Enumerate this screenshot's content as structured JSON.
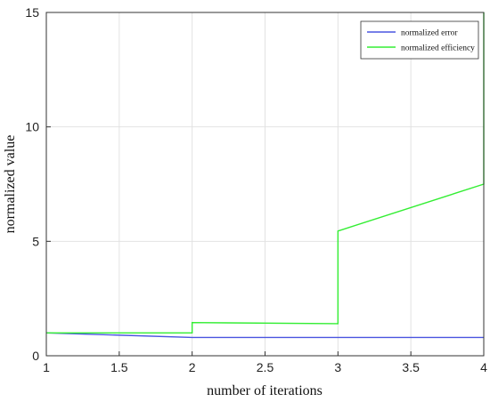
{
  "chart_data": {
    "type": "line",
    "title": "",
    "xlabel": "number of iterations",
    "ylabel": "normalized value",
    "xlim": [
      1,
      4
    ],
    "ylim": [
      0,
      15
    ],
    "xticks": [
      "1",
      "1.5",
      "2",
      "2.5",
      "3",
      "3.5",
      "4"
    ],
    "yticks": [
      "0",
      "5",
      "10",
      "15"
    ],
    "grid": true,
    "legend_position": "top-right",
    "series": [
      {
        "name": "normalized error",
        "color": "#4a55e0",
        "points": [
          [
            1,
            1.0
          ],
          [
            2,
            0.8
          ],
          [
            3,
            0.8
          ],
          [
            4,
            0.8
          ]
        ]
      },
      {
        "name": "normalized efficiency",
        "color": "#33ee33",
        "points": [
          [
            1,
            1.0
          ],
          [
            2,
            1.0
          ],
          [
            2,
            1.45
          ],
          [
            3,
            1.4
          ],
          [
            3,
            5.45
          ],
          [
            4,
            7.5
          ],
          [
            4,
            15
          ]
        ]
      }
    ]
  }
}
